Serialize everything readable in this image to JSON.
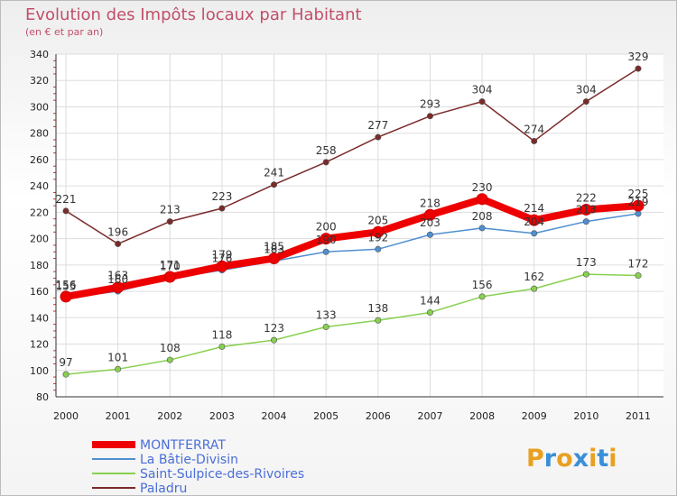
{
  "title": "Evolution des Impôts locaux par Habitant",
  "subtitle": "(en € et par an)",
  "brand": {
    "parts": [
      "P",
      "r",
      "o",
      "x",
      "i",
      "t",
      "i"
    ],
    "colors": [
      "#e8a020",
      "#3a8fd8",
      "#e8a020",
      "#3a8fd8",
      "#e8a020",
      "#3a8fd8",
      "#e8a020"
    ]
  },
  "chart_data": {
    "type": "line",
    "title": "Evolution des Impôts locaux par Habitant",
    "subtitle": "(en € et par an)",
    "xlabel": "",
    "ylabel": "",
    "ylim": [
      80,
      340
    ],
    "yticks": [
      80,
      100,
      120,
      140,
      160,
      180,
      200,
      220,
      240,
      260,
      280,
      300,
      320,
      340
    ],
    "categories": [
      "2000",
      "2001",
      "2002",
      "2003",
      "2004",
      "2005",
      "2006",
      "2007",
      "2008",
      "2009",
      "2010",
      "2011"
    ],
    "grid": true,
    "legend_position": "bottom-left",
    "series": [
      {
        "name": "MONTFERRAT",
        "color": "#ee0000",
        "values": [
          156,
          163,
          171,
          179,
          185,
          200,
          205,
          218,
          230,
          214,
          222,
          225
        ],
        "labels": [
          "156",
          "163",
          "171",
          "179",
          "185",
          "200",
          "205",
          "218",
          "230",
          "214",
          "222",
          "225"
        ]
      },
      {
        "name": "La Bâtie-Divisin",
        "color": "#4f8fd0",
        "values": [
          155,
          160,
          170,
          176,
          183,
          190,
          192,
          203,
          208,
          204,
          213,
          219
        ],
        "labels": [
          "155",
          "160",
          "170",
          "176",
          "183",
          "190",
          "192",
          "203",
          "208",
          "204",
          "213",
          "219"
        ]
      },
      {
        "name": "Saint-Sulpice-des-Rivoires",
        "color": "#88d050",
        "values": [
          97,
          101,
          108,
          118,
          123,
          133,
          138,
          144,
          156,
          162,
          173,
          172
        ],
        "labels": [
          "97",
          "101",
          "108",
          "118",
          "123",
          "133",
          "138",
          "144",
          "156",
          "162",
          "173",
          "172"
        ]
      },
      {
        "name": "Paladru",
        "color": "#7a2a2a",
        "values": [
          221,
          196,
          213,
          223,
          241,
          258,
          277,
          293,
          304,
          274,
          304,
          329
        ],
        "labels": [
          "221",
          "196",
          "213",
          "223",
          "241",
          "258",
          "277",
          "293",
          "304",
          "274",
          "304",
          "329"
        ]
      }
    ]
  }
}
